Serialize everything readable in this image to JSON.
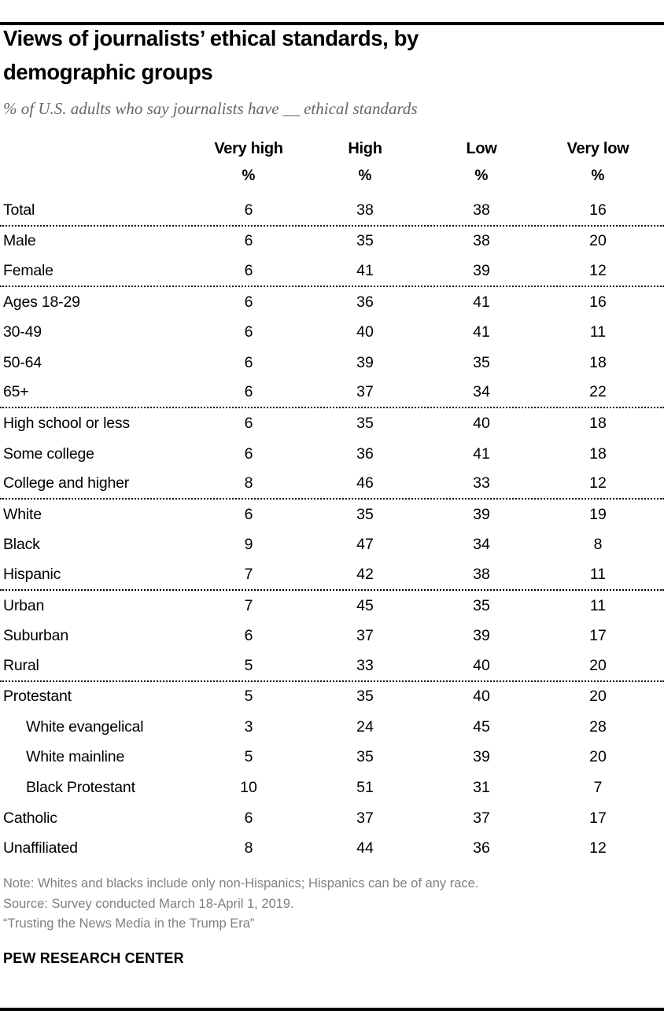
{
  "colors": {
    "text": "#000000",
    "subtitle_gray": "#666666",
    "note_gray": "#808080",
    "rule_black": "#000000"
  },
  "chart_data": {
    "type": "table",
    "title": "Views of journalists’ ethical standards, by demographic groups",
    "subtitle": "% of U.S. adults who say journalists have __ ethical standards",
    "columns": [
      "Very high",
      "High",
      "Low",
      "Very low"
    ],
    "unit": "%",
    "rows": [
      {
        "label": "Total",
        "values": [
          6,
          38,
          38,
          16
        ],
        "indent": false,
        "divider_after": true
      },
      {
        "label": "Male",
        "values": [
          6,
          35,
          38,
          20
        ],
        "indent": false,
        "divider_after": false
      },
      {
        "label": "Female",
        "values": [
          6,
          41,
          39,
          12
        ],
        "indent": false,
        "divider_after": true
      },
      {
        "label": "Ages 18-29",
        "values": [
          6,
          36,
          41,
          16
        ],
        "indent": false,
        "divider_after": false
      },
      {
        "label": "30-49",
        "values": [
          6,
          40,
          41,
          11
        ],
        "indent": false,
        "divider_after": false
      },
      {
        "label": "50-64",
        "values": [
          6,
          39,
          35,
          18
        ],
        "indent": false,
        "divider_after": false
      },
      {
        "label": "65+",
        "values": [
          6,
          37,
          34,
          22
        ],
        "indent": false,
        "divider_after": true
      },
      {
        "label": "High school or less",
        "values": [
          6,
          35,
          40,
          18
        ],
        "indent": false,
        "divider_after": false
      },
      {
        "label": "Some college",
        "values": [
          6,
          36,
          41,
          18
        ],
        "indent": false,
        "divider_after": false
      },
      {
        "label": "College and higher",
        "values": [
          8,
          46,
          33,
          12
        ],
        "indent": false,
        "divider_after": true
      },
      {
        "label": "White",
        "values": [
          6,
          35,
          39,
          19
        ],
        "indent": false,
        "divider_after": false
      },
      {
        "label": "Black",
        "values": [
          9,
          47,
          34,
          8
        ],
        "indent": false,
        "divider_after": false
      },
      {
        "label": "Hispanic",
        "values": [
          7,
          42,
          38,
          11
        ],
        "indent": false,
        "divider_after": true
      },
      {
        "label": "Urban",
        "values": [
          7,
          45,
          35,
          11
        ],
        "indent": false,
        "divider_after": false
      },
      {
        "label": "Suburban",
        "values": [
          6,
          37,
          39,
          17
        ],
        "indent": false,
        "divider_after": false
      },
      {
        "label": "Rural",
        "values": [
          5,
          33,
          40,
          20
        ],
        "indent": false,
        "divider_after": true
      },
      {
        "label": "Protestant",
        "values": [
          5,
          35,
          40,
          20
        ],
        "indent": false,
        "divider_after": false
      },
      {
        "label": "White evangelical",
        "values": [
          3,
          24,
          45,
          28
        ],
        "indent": true,
        "divider_after": false
      },
      {
        "label": "White mainline",
        "values": [
          5,
          35,
          39,
          20
        ],
        "indent": true,
        "divider_after": false
      },
      {
        "label": "Black Protestant",
        "values": [
          10,
          51,
          31,
          7
        ],
        "indent": true,
        "divider_after": false
      },
      {
        "label": "Catholic",
        "values": [
          6,
          37,
          37,
          17
        ],
        "indent": false,
        "divider_after": false
      },
      {
        "label": "Unaffiliated",
        "values": [
          8,
          44,
          36,
          12
        ],
        "indent": false,
        "divider_after": false
      }
    ]
  },
  "footer": {
    "note": "Note: Whites and blacks include only non-Hispanics; Hispanics can be of any race.",
    "source": "Source: Survey conducted March 18-April 1, 2019.",
    "report_title": "“Trusting the News Media in the Trump Era”",
    "brand": "PEW RESEARCH CENTER"
  }
}
